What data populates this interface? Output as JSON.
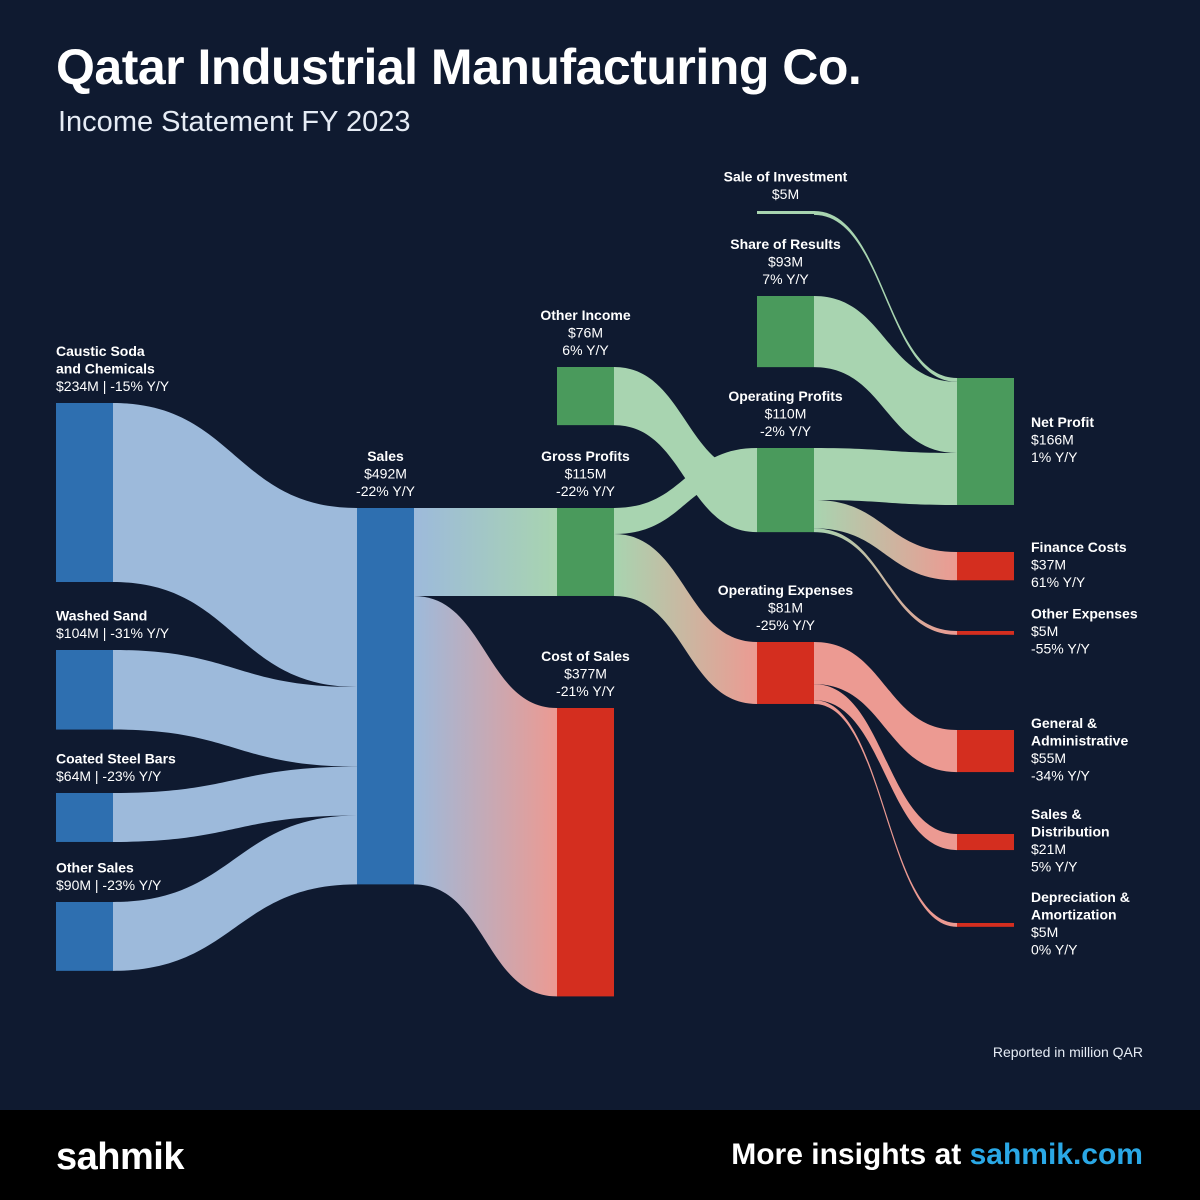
{
  "header": {
    "title": "Qatar Industrial Manufacturing Co.",
    "subtitle": "Income Statement FY 2023"
  },
  "note": "Reported in million QAR",
  "footer": {
    "logo": "sahmik",
    "insights_prefix": "More insights at ",
    "insights_site": "sahmik.com"
  },
  "colors": {
    "background": "#0f1a30",
    "revenue": "#2e6fb0",
    "profit": "#4a9a5c",
    "expense": "#d42e1f",
    "revenue_link": "#9dbadb",
    "profit_link": "#a8d4b0",
    "expense_link": "#ec9a92"
  },
  "chart_data": {
    "type": "sankey",
    "title": "Qatar Industrial Manufacturing Co.",
    "subtitle": "Income Statement FY 2023",
    "unit": "million QAR",
    "nodes": [
      {
        "id": "caustic",
        "name": "Caustic Soda\nand Chemicals",
        "value": 234,
        "value_label": "$234M",
        "yoy": "-15% Y/Y",
        "inline": true,
        "kind": "revenue"
      },
      {
        "id": "sand",
        "name": "Washed Sand",
        "value": 104,
        "value_label": "$104M",
        "yoy": "-31% Y/Y",
        "inline": true,
        "kind": "revenue"
      },
      {
        "id": "steel",
        "name": "Coated Steel Bars",
        "value": 64,
        "value_label": "$64M",
        "yoy": "-23% Y/Y",
        "inline": true,
        "kind": "revenue"
      },
      {
        "id": "other_sales",
        "name": "Other Sales",
        "value": 90,
        "value_label": "$90M",
        "yoy": "-23% Y/Y",
        "inline": true,
        "kind": "revenue"
      },
      {
        "id": "sales",
        "name": "Sales",
        "value": 492,
        "value_label": "$492M",
        "yoy": "-22% Y/Y",
        "kind": "revenue"
      },
      {
        "id": "gross",
        "name": "Gross Profits",
        "value": 115,
        "value_label": "$115M",
        "yoy": "-22% Y/Y",
        "kind": "profit"
      },
      {
        "id": "cos",
        "name": "Cost of Sales",
        "value": 377,
        "value_label": "$377M",
        "yoy": "-21% Y/Y",
        "kind": "expense"
      },
      {
        "id": "other_income",
        "name": "Other Income",
        "value": 76,
        "value_label": "$76M",
        "yoy": "6% Y/Y",
        "kind": "profit"
      },
      {
        "id": "opprofit",
        "name": "Operating Profits",
        "value": 110,
        "value_label": "$110M",
        "yoy": "-2% Y/Y",
        "kind": "profit"
      },
      {
        "id": "opex",
        "name": "Operating Expenses",
        "value": 81,
        "value_label": "$81M",
        "yoy": "-25% Y/Y",
        "kind": "expense"
      },
      {
        "id": "sale_inv",
        "name": "Sale of Investment",
        "value": 5,
        "value_label": "$5M",
        "yoy": "",
        "kind": "profit"
      },
      {
        "id": "share",
        "name": "Share of Results",
        "value": 93,
        "value_label": "$93M",
        "yoy": "7% Y/Y",
        "kind": "profit"
      },
      {
        "id": "net",
        "name": "Net Profit",
        "value": 166,
        "value_label": "$166M",
        "yoy": "1% Y/Y",
        "kind": "profit"
      },
      {
        "id": "finance",
        "name": "Finance Costs",
        "value": 37,
        "value_label": "$37M",
        "yoy": "61% Y/Y",
        "kind": "expense"
      },
      {
        "id": "other_exp",
        "name": "Other Expenses",
        "value": 5,
        "value_label": "$5M",
        "yoy": "-55% Y/Y",
        "kind": "expense"
      },
      {
        "id": "ga",
        "name": "General &\nAdministrative",
        "value": 55,
        "value_label": "$55M",
        "yoy": "-34% Y/Y",
        "kind": "expense"
      },
      {
        "id": "sd",
        "name": "Sales &\nDistribution",
        "value": 21,
        "value_label": "$21M",
        "yoy": "5% Y/Y",
        "kind": "expense"
      },
      {
        "id": "da",
        "name": "Depreciation &\nAmortization",
        "value": 5,
        "value_label": "$5M",
        "yoy": "0% Y/Y",
        "kind": "expense"
      }
    ],
    "links": [
      {
        "source": "caustic",
        "target": "sales",
        "value": 234
      },
      {
        "source": "sand",
        "target": "sales",
        "value": 104
      },
      {
        "source": "steel",
        "target": "sales",
        "value": 64
      },
      {
        "source": "other_sales",
        "target": "sales",
        "value": 90
      },
      {
        "source": "sales",
        "target": "gross",
        "value": 115
      },
      {
        "source": "sales",
        "target": "cos",
        "value": 377
      },
      {
        "source": "gross",
        "target": "opprofit",
        "value": 34
      },
      {
        "source": "gross",
        "target": "opex",
        "value": 81
      },
      {
        "source": "other_income",
        "target": "opprofit",
        "value": 76
      },
      {
        "source": "sale_inv",
        "target": "net",
        "value": 5
      },
      {
        "source": "share",
        "target": "net",
        "value": 93
      },
      {
        "source": "opprofit",
        "target": "net",
        "value": 68
      },
      {
        "source": "opprofit",
        "target": "finance",
        "value": 37
      },
      {
        "source": "opprofit",
        "target": "other_exp",
        "value": 5
      },
      {
        "source": "opex",
        "target": "ga",
        "value": 55
      },
      {
        "source": "opex",
        "target": "sd",
        "value": 21
      },
      {
        "source": "opex",
        "target": "da",
        "value": 5
      }
    ]
  }
}
